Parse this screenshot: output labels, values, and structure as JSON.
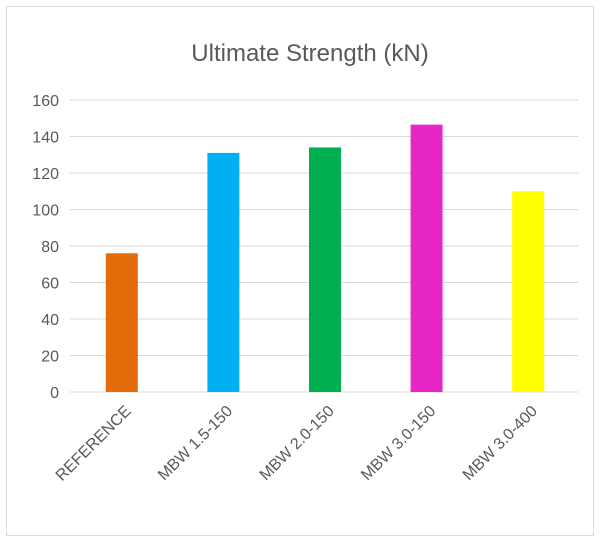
{
  "chart_data": {
    "type": "bar",
    "title": "Ultimate Strength (kN)",
    "xlabel": "",
    "ylabel": "",
    "categories": [
      "REFERENCE",
      "MBW 1.5-150",
      "MBW 2.0-150",
      "MBW 3.0-150",
      "MBW 3.0-400"
    ],
    "values": [
      76,
      131,
      134,
      146.5,
      110
    ],
    "colors": [
      "#E36C0A",
      "#00B0F0",
      "#00B050",
      "#E826C8",
      "#FFFF00"
    ],
    "ylim": [
      0,
      160
    ],
    "yticks": [
      0,
      20,
      40,
      60,
      80,
      100,
      120,
      140,
      160
    ],
    "grid": true,
    "legend": "none"
  }
}
